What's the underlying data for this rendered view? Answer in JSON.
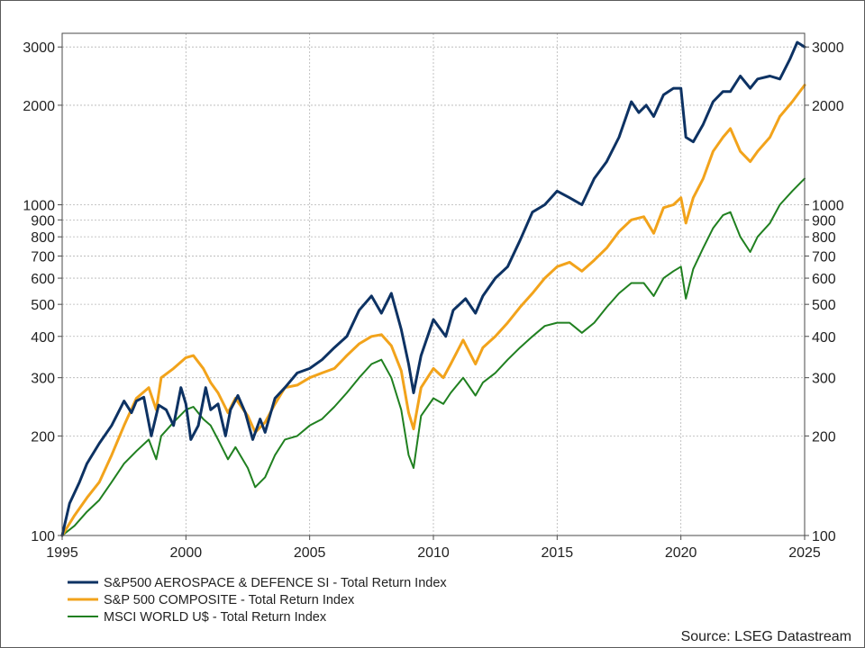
{
  "chart_data": {
    "type": "line",
    "title": "",
    "xlabel": "",
    "ylabel": "",
    "y_scale": "log",
    "xlim": [
      1995,
      2025
    ],
    "ylim": [
      100,
      3300
    ],
    "x_ticks": [
      "1995",
      "2000",
      "2005",
      "2010",
      "2015",
      "2020",
      "2025"
    ],
    "y_ticks": [
      "100",
      "200",
      "300",
      "400",
      "500",
      "600",
      "700",
      "800",
      "900",
      "1000",
      "2000",
      "3000"
    ],
    "grid": true,
    "legend_position": "bottom-left",
    "source": "Source: LSEG Datastream",
    "series": [
      {
        "name": "S&P500 AEROSPACE & DEFENCE SI - Total Return Index",
        "color": "#0d3263",
        "x": [
          1995.0,
          1995.3,
          1995.7,
          1996.0,
          1996.5,
          1997.0,
          1997.5,
          1997.8,
          1998.0,
          1998.3,
          1998.6,
          1998.9,
          1999.2,
          1999.5,
          1999.8,
          2000.0,
          2000.2,
          2000.5,
          2000.8,
          2001.0,
          2001.3,
          2001.6,
          2001.8,
          2002.1,
          2002.4,
          2002.7,
          2003.0,
          2003.2,
          2003.6,
          2004.0,
          2004.5,
          2005.0,
          2005.5,
          2006.0,
          2006.5,
          2007.0,
          2007.5,
          2007.9,
          2008.3,
          2008.7,
          2009.0,
          2009.2,
          2009.5,
          2010.0,
          2010.5,
          2010.8,
          2011.3,
          2011.7,
          2012.0,
          2012.5,
          2013.0,
          2013.5,
          2014.0,
          2014.5,
          2015.0,
          2015.5,
          2016.0,
          2016.5,
          2017.0,
          2017.5,
          2018.0,
          2018.3,
          2018.6,
          2018.9,
          2019.3,
          2019.7,
          2020.0,
          2020.2,
          2020.5,
          2020.9,
          2021.3,
          2021.7,
          2022.0,
          2022.4,
          2022.8,
          2023.1,
          2023.6,
          2024.0,
          2024.4,
          2024.7,
          2025.0
        ],
        "values": [
          100,
          125,
          145,
          165,
          190,
          215,
          255,
          235,
          255,
          262,
          200,
          248,
          240,
          215,
          280,
          250,
          195,
          215,
          280,
          240,
          250,
          200,
          240,
          265,
          235,
          195,
          225,
          205,
          260,
          280,
          310,
          320,
          340,
          370,
          400,
          480,
          530,
          470,
          540,
          420,
          330,
          270,
          350,
          450,
          400,
          480,
          520,
          470,
          530,
          600,
          650,
          780,
          950,
          1000,
          1100,
          1050,
          1000,
          1200,
          1350,
          1600,
          2050,
          1900,
          2000,
          1850,
          2150,
          2250,
          2250,
          1600,
          1550,
          1750,
          2050,
          2200,
          2200,
          2450,
          2250,
          2400,
          2450,
          2400,
          2750,
          3100,
          3000
        ]
      },
      {
        "name": "S&P 500 COMPOSITE - Total Return Index",
        "color": "#f2a31b",
        "x": [
          1995.0,
          1995.5,
          1996.0,
          1996.5,
          1997.0,
          1997.5,
          1998.0,
          1998.5,
          1998.8,
          1999.0,
          1999.5,
          2000.0,
          2000.3,
          2000.7,
          2001.0,
          2001.3,
          2001.7,
          2002.0,
          2002.5,
          2002.8,
          2003.2,
          2003.6,
          2004.0,
          2004.5,
          2005.0,
          2005.5,
          2006.0,
          2006.5,
          2007.0,
          2007.5,
          2007.9,
          2008.3,
          2008.7,
          2009.0,
          2009.2,
          2009.5,
          2010.0,
          2010.4,
          2010.7,
          2011.2,
          2011.7,
          2012.0,
          2012.5,
          2013.0,
          2013.5,
          2014.0,
          2014.5,
          2015.0,
          2015.5,
          2016.0,
          2016.5,
          2017.0,
          2017.5,
          2018.0,
          2018.5,
          2018.9,
          2019.3,
          2019.7,
          2020.0,
          2020.2,
          2020.5,
          2020.9,
          2021.3,
          2021.7,
          2022.0,
          2022.4,
          2022.8,
          2023.1,
          2023.6,
          2024.0,
          2024.5,
          2025.0
        ],
        "values": [
          100,
          115,
          130,
          145,
          175,
          215,
          260,
          280,
          240,
          300,
          320,
          345,
          350,
          320,
          290,
          270,
          235,
          260,
          230,
          205,
          220,
          250,
          280,
          285,
          300,
          310,
          320,
          350,
          380,
          400,
          405,
          375,
          315,
          235,
          210,
          280,
          320,
          300,
          330,
          390,
          330,
          370,
          400,
          440,
          490,
          540,
          600,
          650,
          670,
          630,
          680,
          740,
          830,
          900,
          920,
          820,
          980,
          1000,
          1050,
          880,
          1050,
          1200,
          1450,
          1600,
          1700,
          1450,
          1350,
          1450,
          1600,
          1850,
          2050,
          2300
        ]
      },
      {
        "name": "MSCI WORLD U$ - Total Return Index",
        "color": "#208020",
        "x": [
          1995.0,
          1995.5,
          1996.0,
          1996.5,
          1997.0,
          1997.5,
          1998.0,
          1998.5,
          1998.8,
          1999.0,
          1999.5,
          2000.0,
          2000.3,
          2000.7,
          2001.0,
          2001.3,
          2001.7,
          2002.0,
          2002.5,
          2002.8,
          2003.2,
          2003.6,
          2004.0,
          2004.5,
          2005.0,
          2005.5,
          2006.0,
          2006.5,
          2007.0,
          2007.5,
          2007.9,
          2008.3,
          2008.7,
          2009.0,
          2009.2,
          2009.5,
          2010.0,
          2010.4,
          2010.7,
          2011.2,
          2011.7,
          2012.0,
          2012.5,
          2013.0,
          2013.5,
          2014.0,
          2014.5,
          2015.0,
          2015.5,
          2016.0,
          2016.5,
          2017.0,
          2017.5,
          2018.0,
          2018.5,
          2018.9,
          2019.3,
          2019.7,
          2020.0,
          2020.2,
          2020.5,
          2020.9,
          2021.3,
          2021.7,
          2022.0,
          2022.4,
          2022.8,
          2023.1,
          2023.6,
          2024.0,
          2024.5,
          2025.0
        ],
        "values": [
          100,
          107,
          118,
          128,
          145,
          165,
          180,
          195,
          170,
          200,
          220,
          240,
          245,
          225,
          215,
          195,
          170,
          185,
          160,
          140,
          150,
          175,
          195,
          200,
          215,
          225,
          245,
          270,
          300,
          330,
          340,
          300,
          240,
          175,
          160,
          230,
          260,
          250,
          270,
          300,
          265,
          290,
          310,
          340,
          370,
          400,
          430,
          440,
          440,
          410,
          440,
          490,
          540,
          580,
          580,
          530,
          600,
          630,
          650,
          520,
          640,
          740,
          850,
          930,
          950,
          800,
          720,
          800,
          880,
          1000,
          1100,
          1200
        ]
      }
    ]
  }
}
